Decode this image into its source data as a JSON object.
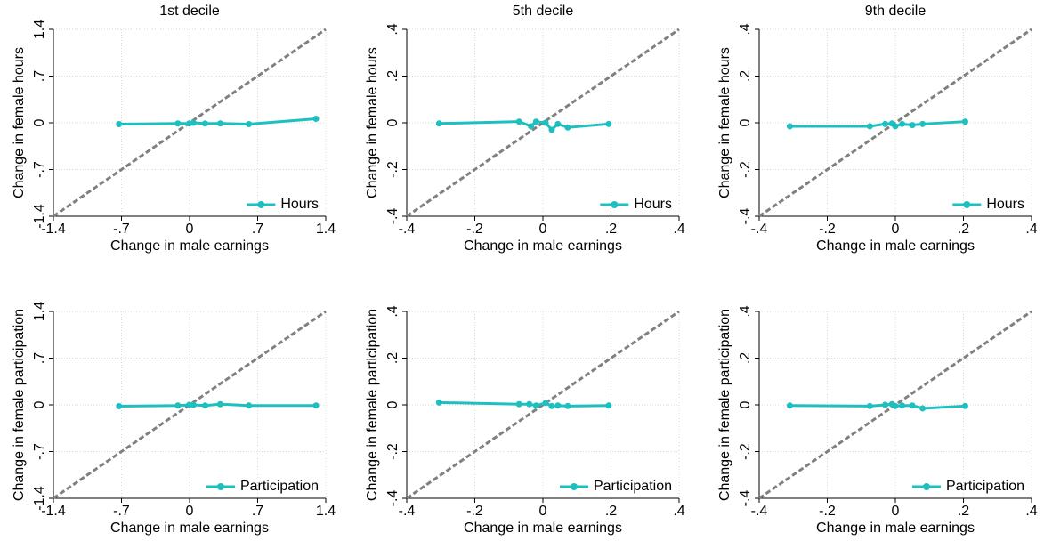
{
  "chart_data": [
    {
      "type": "line",
      "title": "1st decile",
      "xlabel": "Change in male earnings",
      "ylabel": "Change in female hours",
      "xlim": [
        -1.4,
        1.4
      ],
      "ylim": [
        -1.4,
        1.4
      ],
      "xticks": [
        -1.4,
        {
          "value": -0.7,
          "label": "-.7"
        },
        0,
        {
          "value": 0.7,
          "label": ".7"
        },
        1.4
      ],
      "yticks": [
        -1.4,
        {
          "value": -0.7,
          "label": "-.7"
        },
        0,
        {
          "value": 0.7,
          "label": ".7"
        },
        1.4
      ],
      "grid": true,
      "diagonal": true,
      "legend": "lower right",
      "series": [
        {
          "name": "Hours",
          "color": "#1ebfbf",
          "x": [
            -0.725,
            -0.12,
            -0.004,
            0.04,
            0.16,
            0.315,
            0.61,
            1.3
          ],
          "values": [
            -0.02,
            -0.01,
            -0.01,
            0,
            -0.01,
            -0.01,
            -0.02,
            0.06
          ]
        }
      ]
    },
    {
      "type": "line",
      "title": "5th decile",
      "xlabel": "Change in male earnings",
      "ylabel": "Change in female hours",
      "xlim": [
        -0.4,
        0.4
      ],
      "ylim": [
        -0.4,
        0.4
      ],
      "xticks": [
        {
          "value": -0.4,
          "label": "-.4"
        },
        {
          "value": -0.2,
          "label": "-.2"
        },
        0,
        {
          "value": 0.2,
          "label": ".2"
        },
        {
          "value": 0.4,
          "label": ".4"
        }
      ],
      "yticks": [
        {
          "value": -0.4,
          "label": "-.4"
        },
        {
          "value": -0.2,
          "label": "-.2"
        },
        0,
        {
          "value": 0.2,
          "label": ".2"
        },
        {
          "value": 0.4,
          "label": ".4"
        }
      ],
      "grid": true,
      "diagonal": true,
      "legend": "lower right",
      "series": [
        {
          "name": "Hours",
          "color": "#1ebfbf",
          "x": [
            -0.305,
            -0.07,
            -0.035,
            -0.02,
            0.008,
            0.026,
            0.044,
            0.073,
            0.193
          ],
          "values": [
            -0.003,
            0.005,
            -0.015,
            0.005,
            0.0,
            -0.03,
            -0.005,
            -0.02,
            -0.005
          ]
        }
      ]
    },
    {
      "type": "line",
      "title": "9th decile",
      "xlabel": "Change in male earnings",
      "ylabel": "Change in female hours",
      "xlim": [
        -0.4,
        0.4
      ],
      "ylim": [
        -0.4,
        0.4
      ],
      "xticks": [
        {
          "value": -0.4,
          "label": "-.4"
        },
        {
          "value": -0.2,
          "label": "-.2"
        },
        0,
        {
          "value": 0.2,
          "label": ".2"
        },
        {
          "value": 0.4,
          "label": ".4"
        }
      ],
      "yticks": [
        {
          "value": -0.4,
          "label": "-.4"
        },
        {
          "value": -0.2,
          "label": "-.2"
        },
        0,
        {
          "value": 0.2,
          "label": ".2"
        },
        {
          "value": 0.4,
          "label": ".4"
        }
      ],
      "grid": true,
      "diagonal": true,
      "legend": "lower right",
      "series": [
        {
          "name": "Hours",
          "color": "#1ebfbf",
          "x": [
            -0.31,
            -0.075,
            -0.03,
            -0.01,
            0.0,
            0.02,
            0.05,
            0.08,
            0.205
          ],
          "values": [
            -0.015,
            -0.015,
            -0.005,
            -0.003,
            -0.015,
            -0.005,
            -0.01,
            -0.005,
            0.005
          ]
        }
      ]
    },
    {
      "type": "line",
      "xlabel": "Change in male earnings",
      "ylabel": "Change in female participation",
      "xlim": [
        -1.4,
        1.4
      ],
      "ylim": [
        -1.4,
        1.4
      ],
      "xticks": [
        -1.4,
        {
          "value": -0.7,
          "label": "-.7"
        },
        0,
        {
          "value": 0.7,
          "label": ".7"
        },
        1.4
      ],
      "yticks": [
        -1.4,
        {
          "value": -0.7,
          "label": "-.7"
        },
        0,
        {
          "value": 0.7,
          "label": ".7"
        },
        1.4
      ],
      "grid": true,
      "diagonal": true,
      "legend": "lower right",
      "series": [
        {
          "name": "Participation",
          "color": "#1ebfbf",
          "x": [
            -0.725,
            -0.12,
            -0.004,
            0.04,
            0.16,
            0.315,
            0.61,
            1.3
          ],
          "values": [
            -0.02,
            -0.01,
            0,
            0,
            -0.01,
            0.01,
            -0.01,
            -0.01
          ]
        }
      ]
    },
    {
      "type": "line",
      "xlabel": "Change in male earnings",
      "ylabel": "Change in female participation",
      "xlim": [
        -0.4,
        0.4
      ],
      "ylim": [
        -0.4,
        0.4
      ],
      "xticks": [
        {
          "value": -0.4,
          "label": "-.4"
        },
        {
          "value": -0.2,
          "label": "-.2"
        },
        0,
        {
          "value": 0.2,
          "label": ".2"
        },
        {
          "value": 0.4,
          "label": ".4"
        }
      ],
      "yticks": [
        {
          "value": -0.4,
          "label": "-.4"
        },
        {
          "value": -0.2,
          "label": "-.2"
        },
        0,
        {
          "value": 0.2,
          "label": ".2"
        },
        {
          "value": 0.4,
          "label": ".4"
        }
      ],
      "grid": true,
      "diagonal": true,
      "legend": "lower right",
      "series": [
        {
          "name": "Participation",
          "color": "#1ebfbf",
          "x": [
            -0.305,
            -0.07,
            -0.04,
            -0.02,
            0.008,
            0.026,
            0.044,
            0.073,
            0.193
          ],
          "values": [
            0.01,
            0.003,
            0.003,
            -0.003,
            0.008,
            -0.005,
            -0.003,
            -0.005,
            -0.003
          ]
        }
      ]
    },
    {
      "type": "line",
      "xlabel": "Change in male earnings",
      "ylabel": "Change in female participation",
      "xlim": [
        -0.4,
        0.4
      ],
      "ylim": [
        -0.4,
        0.4
      ],
      "xticks": [
        {
          "value": -0.4,
          "label": "-.4"
        },
        {
          "value": -0.2,
          "label": "-.2"
        },
        0,
        {
          "value": 0.2,
          "label": ".2"
        },
        {
          "value": 0.4,
          "label": ".4"
        }
      ],
      "yticks": [
        {
          "value": -0.4,
          "label": "-.4"
        },
        {
          "value": -0.2,
          "label": "-.2"
        },
        0,
        {
          "value": 0.2,
          "label": ".2"
        },
        {
          "value": 0.4,
          "label": ".4"
        }
      ],
      "grid": true,
      "diagonal": true,
      "legend": "lower right",
      "series": [
        {
          "name": "Participation",
          "color": "#1ebfbf",
          "x": [
            -0.31,
            -0.075,
            -0.03,
            -0.01,
            0.0,
            0.02,
            0.05,
            0.08,
            0.205
          ],
          "values": [
            -0.003,
            -0.005,
            0,
            0.003,
            -0.005,
            -0.003,
            -0.003,
            -0.015,
            -0.005
          ]
        }
      ]
    }
  ]
}
